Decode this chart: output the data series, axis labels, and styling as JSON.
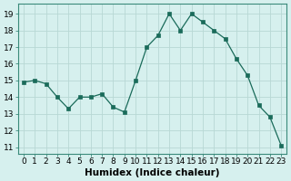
{
  "x": [
    0,
    1,
    2,
    3,
    4,
    5,
    6,
    7,
    8,
    9,
    10,
    11,
    12,
    13,
    14,
    15,
    16,
    17,
    18,
    19,
    20,
    21,
    22,
    23
  ],
  "y": [
    14.9,
    15.0,
    14.8,
    14.0,
    13.3,
    14.0,
    14.0,
    14.2,
    13.4,
    13.1,
    15.0,
    17.0,
    17.7,
    19.0,
    18.0,
    19.0,
    18.5,
    18.0,
    17.5,
    16.3,
    15.3,
    13.5,
    12.8,
    11.1
  ],
  "line_color": "#1a6b5a",
  "marker_color": "#1a6b5a",
  "bg_color": "#d6f0ee",
  "grid_color": "#b8d8d4",
  "xlabel": "Humidex (Indice chaleur)",
  "ylabel_ticks": [
    11,
    12,
    13,
    14,
    15,
    16,
    17,
    18,
    19
  ],
  "xlim": [
    -0.5,
    23.5
  ],
  "ylim": [
    10.6,
    19.6
  ],
  "tick_fontsize": 6.5,
  "xlabel_fontsize": 7.5,
  "xlabel_fontweight": "bold",
  "linewidth": 0.9,
  "markersize": 2.2
}
